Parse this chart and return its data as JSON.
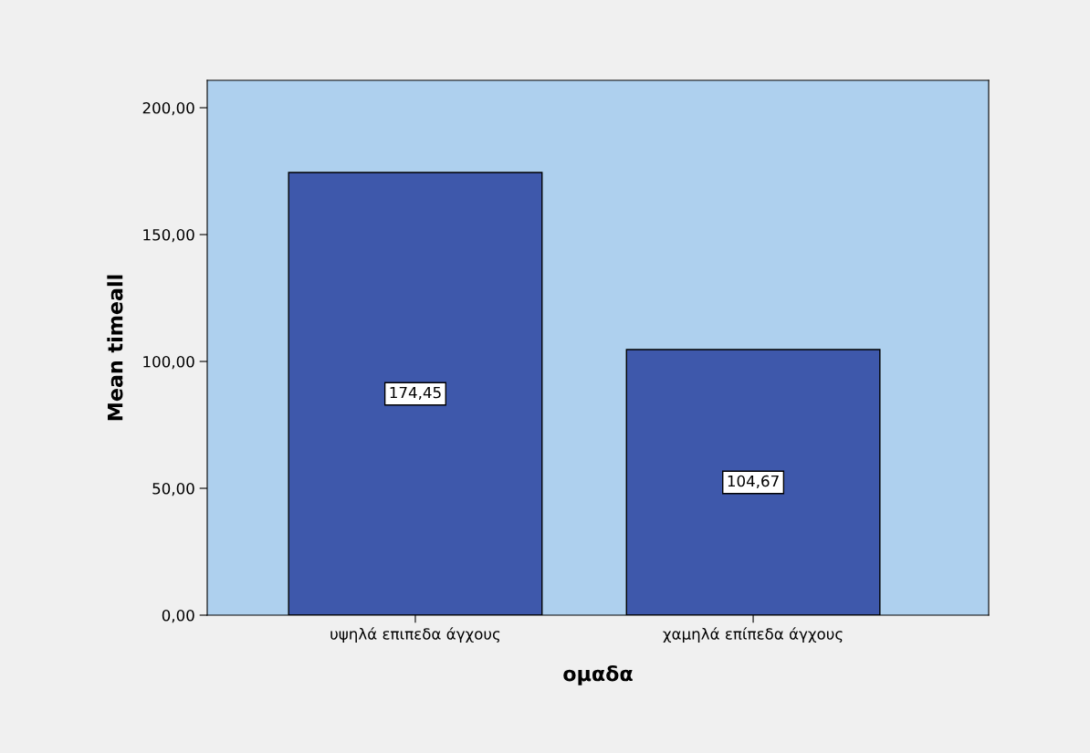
{
  "chart_data": {
    "type": "bar",
    "xlabel": "ομαδα",
    "ylabel": "Mean timeall",
    "categories": [
      "υψηλά επιπεδα άγχους",
      "χαμηλά επίπεδα άγχους"
    ],
    "values": [
      174.45,
      104.67
    ],
    "color": "#3e58ab",
    "value_labels": [
      "174,45",
      "104,67"
    ],
    "ylim": [
      0,
      210.8
    ],
    "yticks": [
      {
        "value": 0,
        "label": "0,00"
      },
      {
        "value": 50,
        "label": "50,00"
      },
      {
        "value": 100,
        "label": "100,00"
      },
      {
        "value": 150,
        "label": "150,00"
      },
      {
        "value": 200,
        "label": "200,00"
      }
    ],
    "grid": false,
    "legend": false
  }
}
